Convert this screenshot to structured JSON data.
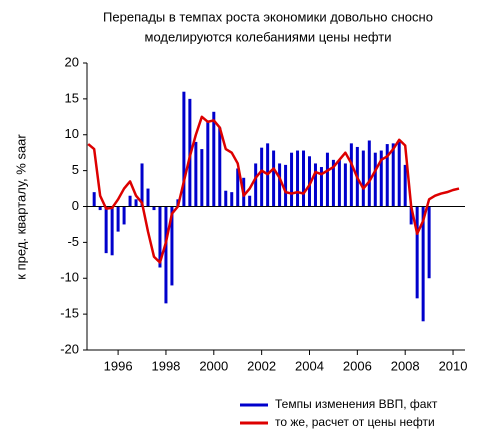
{
  "chart_data": {
    "type": "combo",
    "title": [
      "Перепады в темпах роста экономики довольно сносно",
      "моделируются колебаниями цены нефти"
    ],
    "ylabel": "к пред. кварталу, % saar",
    "xlim": [
      1994.7,
      2010.5
    ],
    "xticks": [
      1996,
      1998,
      2000,
      2002,
      2004,
      2006,
      2008,
      2010
    ],
    "ylim": [
      -20,
      20
    ],
    "yticks": [
      -20,
      -15,
      -10,
      -5,
      0,
      5,
      10,
      15,
      20
    ],
    "series": [
      {
        "name": "Темпы изменения ВВП, факт",
        "color": "#0000cc",
        "type": "bar",
        "x": [
          1995,
          1995.25,
          1995.5,
          1995.75,
          1996,
          1996.25,
          1996.5,
          1996.75,
          1997,
          1997.25,
          1997.5,
          1997.75,
          1998,
          1998.25,
          1998.5,
          1998.75,
          1999,
          1999.25,
          1999.5,
          1999.75,
          2000,
          2000.25,
          2000.5,
          2000.75,
          2001,
          2001.25,
          2001.5,
          2001.75,
          2002,
          2002.25,
          2002.5,
          2002.75,
          2003,
          2003.25,
          2003.5,
          2003.75,
          2004,
          2004.25,
          2004.5,
          2004.75,
          2005,
          2005.25,
          2005.5,
          2005.75,
          2006,
          2006.25,
          2006.5,
          2006.75,
          2007,
          2007.25,
          2007.5,
          2007.75,
          2008,
          2008.25,
          2008.5,
          2008.75,
          2009
        ],
        "values": [
          2,
          -0.5,
          -6.5,
          -6.8,
          -3.5,
          -2.5,
          1.5,
          1,
          6,
          2.5,
          -0.5,
          -8.5,
          -13.5,
          -11,
          1,
          16,
          15,
          9,
          8,
          12,
          13.2,
          11,
          2.2,
          2,
          5.3,
          4,
          1.5,
          6,
          8.2,
          8.8,
          7.8,
          6,
          5.8,
          7.5,
          7.8,
          7.8,
          7,
          6,
          5.5,
          7.5,
          6.5,
          6.5,
          6,
          8.8,
          8.3,
          7.8,
          9.2,
          7.5,
          7.8,
          8.7,
          8.8,
          9,
          5.8,
          -2.5,
          -12.8,
          -16,
          -10
        ]
      },
      {
        "name": "то же, расчет от цены нефти",
        "color": "#dd0000",
        "type": "line",
        "x": [
          1994.75,
          1995,
          1995.25,
          1995.5,
          1995.75,
          1996,
          1996.25,
          1996.5,
          1996.75,
          1997,
          1997.25,
          1997.5,
          1997.75,
          1998,
          1998.25,
          1998.5,
          1998.75,
          1999,
          1999.25,
          1999.5,
          1999.75,
          2000,
          2000.25,
          2000.5,
          2000.75,
          2001,
          2001.25,
          2001.5,
          2001.75,
          2002,
          2002.25,
          2002.5,
          2002.75,
          2003,
          2003.25,
          2003.5,
          2003.75,
          2004,
          2004.25,
          2004.5,
          2004.75,
          2005,
          2005.25,
          2005.5,
          2005.75,
          2006,
          2006.25,
          2006.5,
          2006.75,
          2007,
          2007.25,
          2007.5,
          2007.75,
          2008,
          2008.25,
          2008.5,
          2008.75,
          2009,
          2009.25,
          2009.5,
          2009.75,
          2010,
          2010.25
        ],
        "values": [
          8.7,
          8,
          1.5,
          -0.3,
          -0.2,
          1,
          2.5,
          3.5,
          1.5,
          0.5,
          -3.5,
          -7,
          -7.8,
          -5,
          -1,
          0,
          3.5,
          7,
          10,
          12.5,
          11.8,
          12,
          11,
          8,
          7.5,
          6,
          1.5,
          2.5,
          4,
          5,
          4.5,
          5.3,
          4,
          2,
          1.8,
          2,
          1.8,
          3,
          4.8,
          4.5,
          5,
          5.5,
          6.5,
          7.5,
          6,
          4,
          2.5,
          3.5,
          5,
          6.5,
          7,
          8,
          9.3,
          8.5,
          0,
          -3.8,
          -2,
          1,
          1.5,
          1.8,
          2,
          2.3,
          2.5
        ]
      }
    ]
  }
}
